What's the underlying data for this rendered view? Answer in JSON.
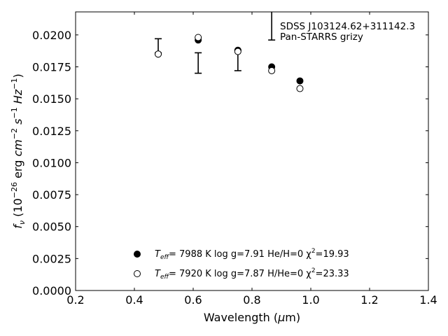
{
  "chart_data": {
    "type": "scatter",
    "xlabel": "Wavelength (μm)",
    "ylabel": "f_ν (10^−26 erg cm^−2 s^−1 Hz^−1)",
    "xlim": [
      0.2,
      1.4
    ],
    "ylim": [
      0.0,
      0.0218
    ],
    "x_ticks": [
      0.2,
      0.4,
      0.6,
      0.8,
      1.0,
      1.2,
      1.4
    ],
    "x_tick_labels": [
      "0.2",
      "0.4",
      "0.6",
      "0.8",
      "1.0",
      "1.2",
      "1.4"
    ],
    "y_ticks": [
      0.0,
      0.0025,
      0.005,
      0.0075,
      0.01,
      0.0125,
      0.015,
      0.0175,
      0.02
    ],
    "y_tick_labels": [
      "0.0000",
      "0.0025",
      "0.0050",
      "0.0075",
      "0.0100",
      "0.0125",
      "0.0150",
      "0.0175",
      "0.0200"
    ],
    "grid": false,
    "annotation": {
      "lines": [
        "SDSS J103124.62+311142.3",
        "Pan-STARRS grizy"
      ],
      "error_bar": {
        "x": 0.867,
        "low": 0.0196,
        "high": 0.0218
      }
    },
    "observed": {
      "style": "error-bar",
      "points": [
        {
          "x": 0.481,
          "low": 0.0186,
          "high": 0.0197
        },
        {
          "x": 0.617,
          "low": 0.017,
          "high": 0.0186
        },
        {
          "x": 0.752,
          "low": 0.0172,
          "high": 0.0188
        }
      ]
    },
    "series": [
      {
        "marker": "filled-circle",
        "color": "#000000",
        "x": [
          0.481,
          0.617,
          0.752,
          0.867,
          0.963
        ],
        "y": [
          0.0185,
          0.0196,
          0.0188,
          0.0175,
          0.0164
        ],
        "legend": {
          "teff_label": "T",
          "teff_sub": "eff",
          "text": "=  7988 K  log g=7.91  He/H=0  χ",
          "sup": "2",
          "chi": "=19.93"
        }
      },
      {
        "marker": "open-circle",
        "color": "#000000",
        "x": [
          0.481,
          0.617,
          0.752,
          0.867,
          0.963
        ],
        "y": [
          0.0185,
          0.0198,
          0.0187,
          0.0172,
          0.0158
        ],
        "legend": {
          "teff_label": "T",
          "teff_sub": "eff",
          "text": "=  7920 K  log g=7.87  H/He=0  χ",
          "sup": "2",
          "chi": "=23.33"
        }
      }
    ],
    "legend_position": "lower-center"
  }
}
